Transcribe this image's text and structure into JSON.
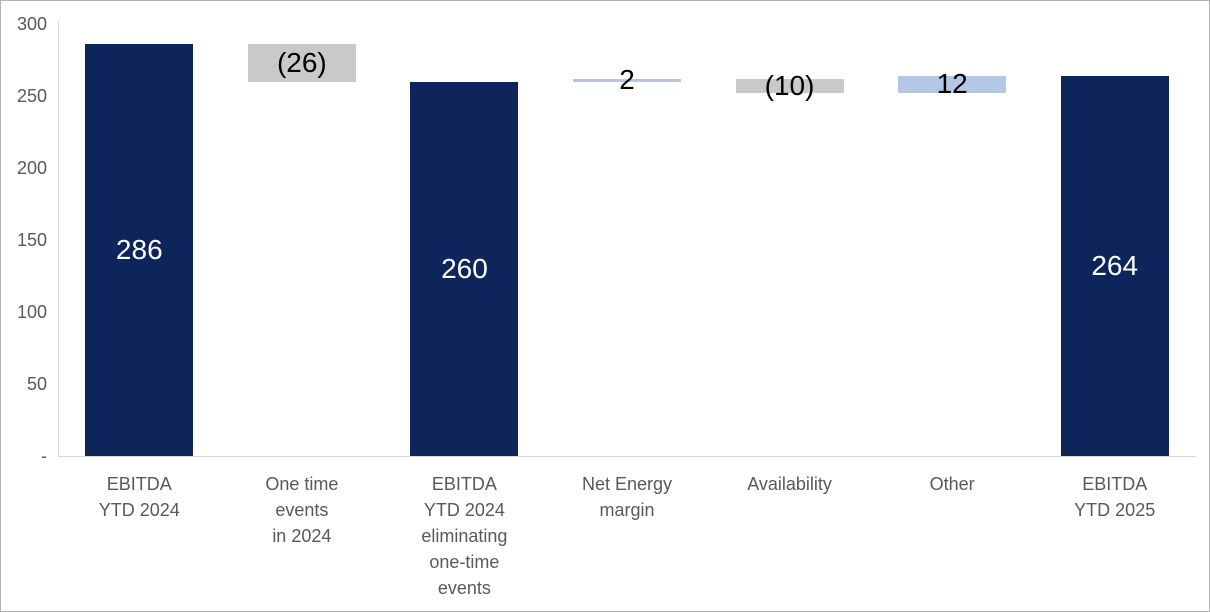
{
  "chart_data": {
    "type": "bar",
    "subtype": "waterfall",
    "title": "",
    "xlabel": "",
    "ylabel": "",
    "ylim": [
      0,
      300
    ],
    "grid": false,
    "legend": false,
    "y_axis": {
      "ticks": [
        {
          "value": 0,
          "label": "-"
        },
        {
          "value": 50,
          "label": "50"
        },
        {
          "value": 100,
          "label": "100"
        },
        {
          "value": 150,
          "label": "150"
        },
        {
          "value": 200,
          "label": "200"
        },
        {
          "value": 250,
          "label": "250"
        },
        {
          "value": 300,
          "label": "300"
        }
      ]
    },
    "categories": [
      "EBITDA YTD 2024",
      "One time events in 2024",
      "EBITDA YTD 2024 eliminating one-time events",
      "Net Energy margin",
      "Availability",
      "Other",
      "EBITDA YTD 2025"
    ],
    "bars": [
      {
        "category_lines": [
          "EBITDA",
          "YTD 2024"
        ],
        "value": 286,
        "display": "286",
        "base": 0,
        "top": 286,
        "color_key": "navy",
        "label_color_key": "label_light"
      },
      {
        "category_lines": [
          "One time",
          "events",
          "in 2024"
        ],
        "value": -26,
        "display": "(26)",
        "base": 260,
        "top": 286,
        "color_key": "gray",
        "label_color_key": "label_dark"
      },
      {
        "category_lines": [
          "EBITDA",
          "YTD 2024",
          "eliminating",
          "one-time",
          "events"
        ],
        "value": 260,
        "display": "260",
        "base": 0,
        "top": 260,
        "color_key": "navy",
        "label_color_key": "label_light"
      },
      {
        "category_lines": [
          "Net Energy",
          "margin"
        ],
        "value": 2,
        "display": "2",
        "base": 260,
        "top": 262,
        "color_key": "lightblue",
        "label_color_key": "label_dark"
      },
      {
        "category_lines": [
          "Availability"
        ],
        "value": -10,
        "display": "(10)",
        "base": 252,
        "top": 262,
        "color_key": "gray",
        "label_color_key": "label_dark"
      },
      {
        "category_lines": [
          "Other"
        ],
        "value": 12,
        "display": "12",
        "base": 252,
        "top": 264,
        "color_key": "lightblue",
        "label_color_key": "label_dark"
      },
      {
        "category_lines": [
          "EBITDA",
          "YTD 2025"
        ],
        "value": 264,
        "display": "264",
        "base": 0,
        "top": 264,
        "color_key": "navy",
        "label_color_key": "label_light"
      }
    ],
    "colors": {
      "navy": "#0e255c",
      "gray": "#c9c9c9",
      "lightblue": "#b4c7e7",
      "label_light": "#ffffff",
      "label_dark": "#000000",
      "axis_line": "#d9d9d9",
      "axis_text": "#595959"
    }
  }
}
